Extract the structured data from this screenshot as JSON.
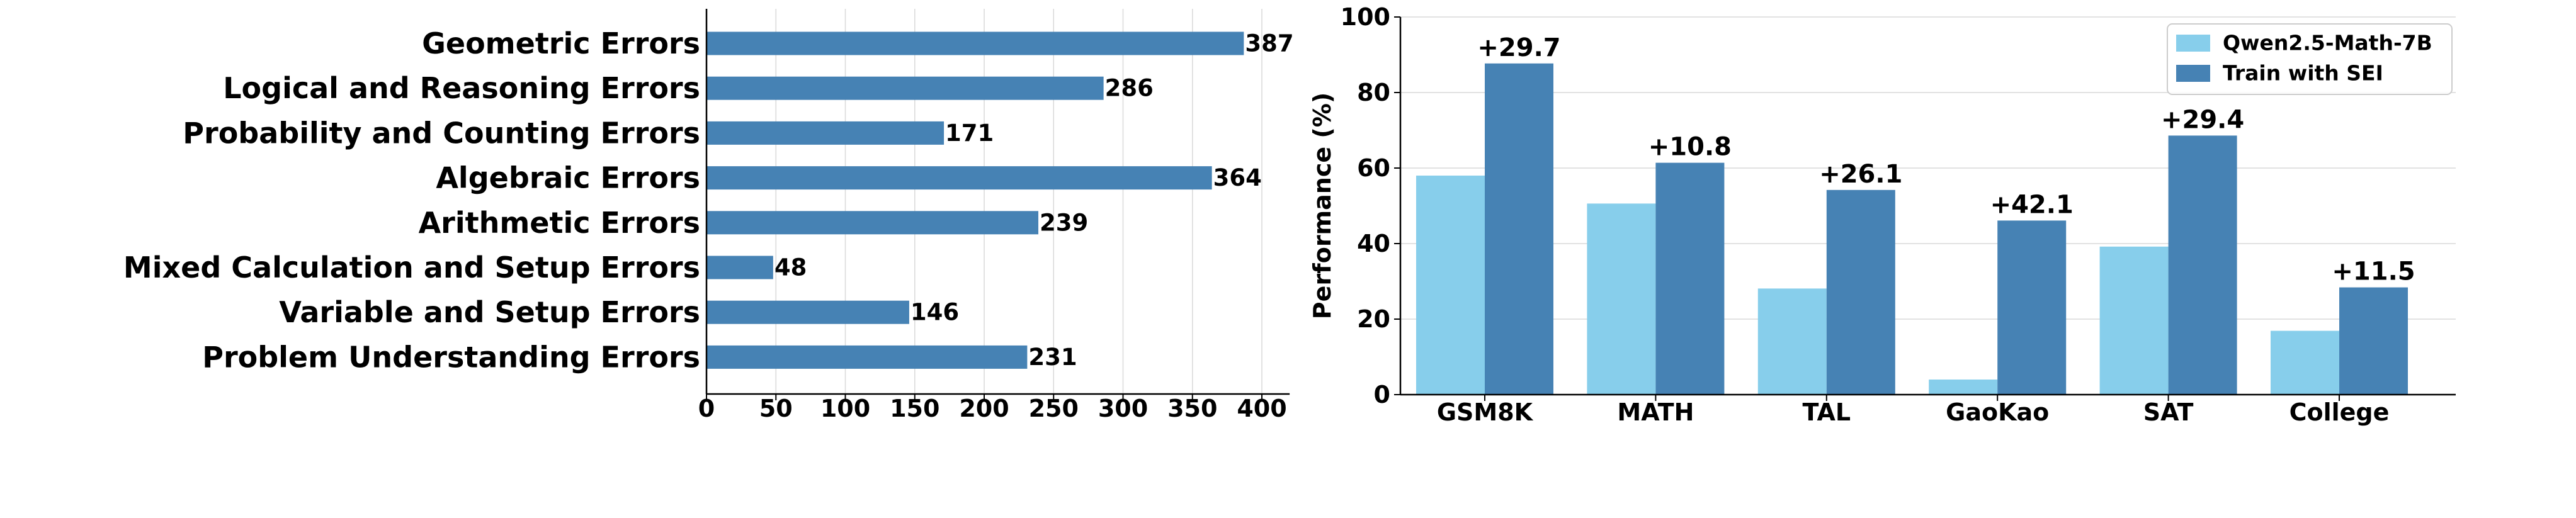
{
  "colors": {
    "bar_dark": "#4682b4",
    "bar_light": "#87ceeb",
    "grid": "#d9d9d9",
    "axis": "#000000"
  },
  "chart_data": [
    {
      "type": "bar",
      "orientation": "horizontal",
      "categories": [
        "Geometric Errors",
        "Logical and Reasoning Errors",
        "Probability and Counting Errors",
        "Algebraic Errors",
        "Arithmetic Errors",
        "Mixed Calculation and Setup Errors",
        "Variable and Setup Errors",
        "Problem Understanding Errors"
      ],
      "values": [
        387,
        286,
        171,
        364,
        239,
        48,
        146,
        231
      ],
      "value_labels": [
        "387",
        "286",
        "171",
        "364",
        "239",
        "48",
        "146",
        "231"
      ],
      "xlim": [
        0,
        420
      ],
      "xticks": [
        0,
        50,
        100,
        150,
        200,
        250,
        300,
        350,
        400
      ],
      "xtick_labels": [
        "0",
        "50",
        "100",
        "150",
        "200",
        "250",
        "300",
        "350",
        "400"
      ],
      "grid": "vertical",
      "title": "",
      "xlabel": "",
      "ylabel": ""
    },
    {
      "type": "bar",
      "orientation": "vertical",
      "categories": [
        "GSM8K",
        "MATH",
        "TAL",
        "GaoKao",
        "SAT",
        "College"
      ],
      "series": [
        {
          "name": "Qwen2.5-Math-7B",
          "values": [
            58.0,
            50.6,
            28.1,
            4.0,
            39.2,
            16.9
          ]
        },
        {
          "name": "Train with SEI",
          "values": [
            87.7,
            61.4,
            54.2,
            46.1,
            68.6,
            28.4
          ]
        }
      ],
      "annotations": [
        "+29.7",
        "+10.8",
        "+26.1",
        "+42.1",
        "+29.4",
        "+11.5"
      ],
      "ylim": [
        0,
        100
      ],
      "yticks": [
        0,
        20,
        40,
        60,
        80,
        100
      ],
      "ytick_labels": [
        "0",
        "20",
        "40",
        "60",
        "80",
        "100"
      ],
      "ylabel": "Performance (%)",
      "xlabel": "",
      "title": "",
      "grid": "horizontal",
      "legend": "top-right"
    }
  ]
}
